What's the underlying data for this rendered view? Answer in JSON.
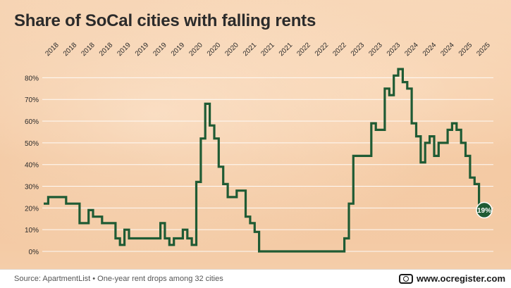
{
  "title": "Share of SoCal cities with falling rents",
  "source": "Source: ApartmentList • One-year rent drops among 32 cities",
  "brand": "www.ocregister.com",
  "colors": {
    "line": "#1f5b34",
    "grid": "#ffffff",
    "text": "#2b2b2b"
  },
  "chart_data": {
    "type": "line",
    "title": "Share of SoCal cities with falling rents",
    "xlabel": "",
    "ylabel": "",
    "ylim": [
      0,
      85
    ],
    "yticks": [
      0,
      10,
      20,
      30,
      40,
      50,
      60,
      70,
      80
    ],
    "ytick_labels": [
      "0%",
      "10%",
      "20%",
      "30%",
      "40%",
      "50%",
      "60%",
      "70%",
      "80%"
    ],
    "xtick_labels": [
      "2018",
      "2018",
      "2018",
      "2018",
      "2019",
      "2019",
      "2019",
      "2019",
      "2020",
      "2020",
      "2020",
      "2021",
      "2021",
      "2021",
      "2022",
      "2022",
      "2022",
      "2023",
      "2023",
      "2023",
      "2024",
      "2024",
      "2024",
      "2025",
      "2025"
    ],
    "series": [
      {
        "name": "Share of cities with falling rents (%)",
        "step": true,
        "values": [
          22,
          25,
          25,
          25,
          25,
          22,
          22,
          22,
          13,
          13,
          19,
          16,
          16,
          13,
          13,
          13,
          6,
          3,
          10,
          6,
          6,
          6,
          6,
          6,
          6,
          6,
          13,
          6,
          3,
          6,
          6,
          10,
          6,
          3,
          32,
          52,
          68,
          58,
          52,
          39,
          31,
          25,
          25,
          28,
          28,
          16,
          13,
          9,
          0,
          0,
          0,
          0,
          0,
          0,
          0,
          0,
          0,
          0,
          0,
          0,
          0,
          0,
          0,
          0,
          0,
          0,
          0,
          6,
          22,
          44,
          44,
          44,
          44,
          59,
          56,
          56,
          75,
          72,
          81,
          84,
          78,
          75,
          59,
          53,
          41,
          50,
          53,
          44,
          50,
          50,
          56,
          59,
          56,
          50,
          44,
          34,
          31,
          19,
          19
        ],
        "end_label": "19%"
      }
    ]
  }
}
